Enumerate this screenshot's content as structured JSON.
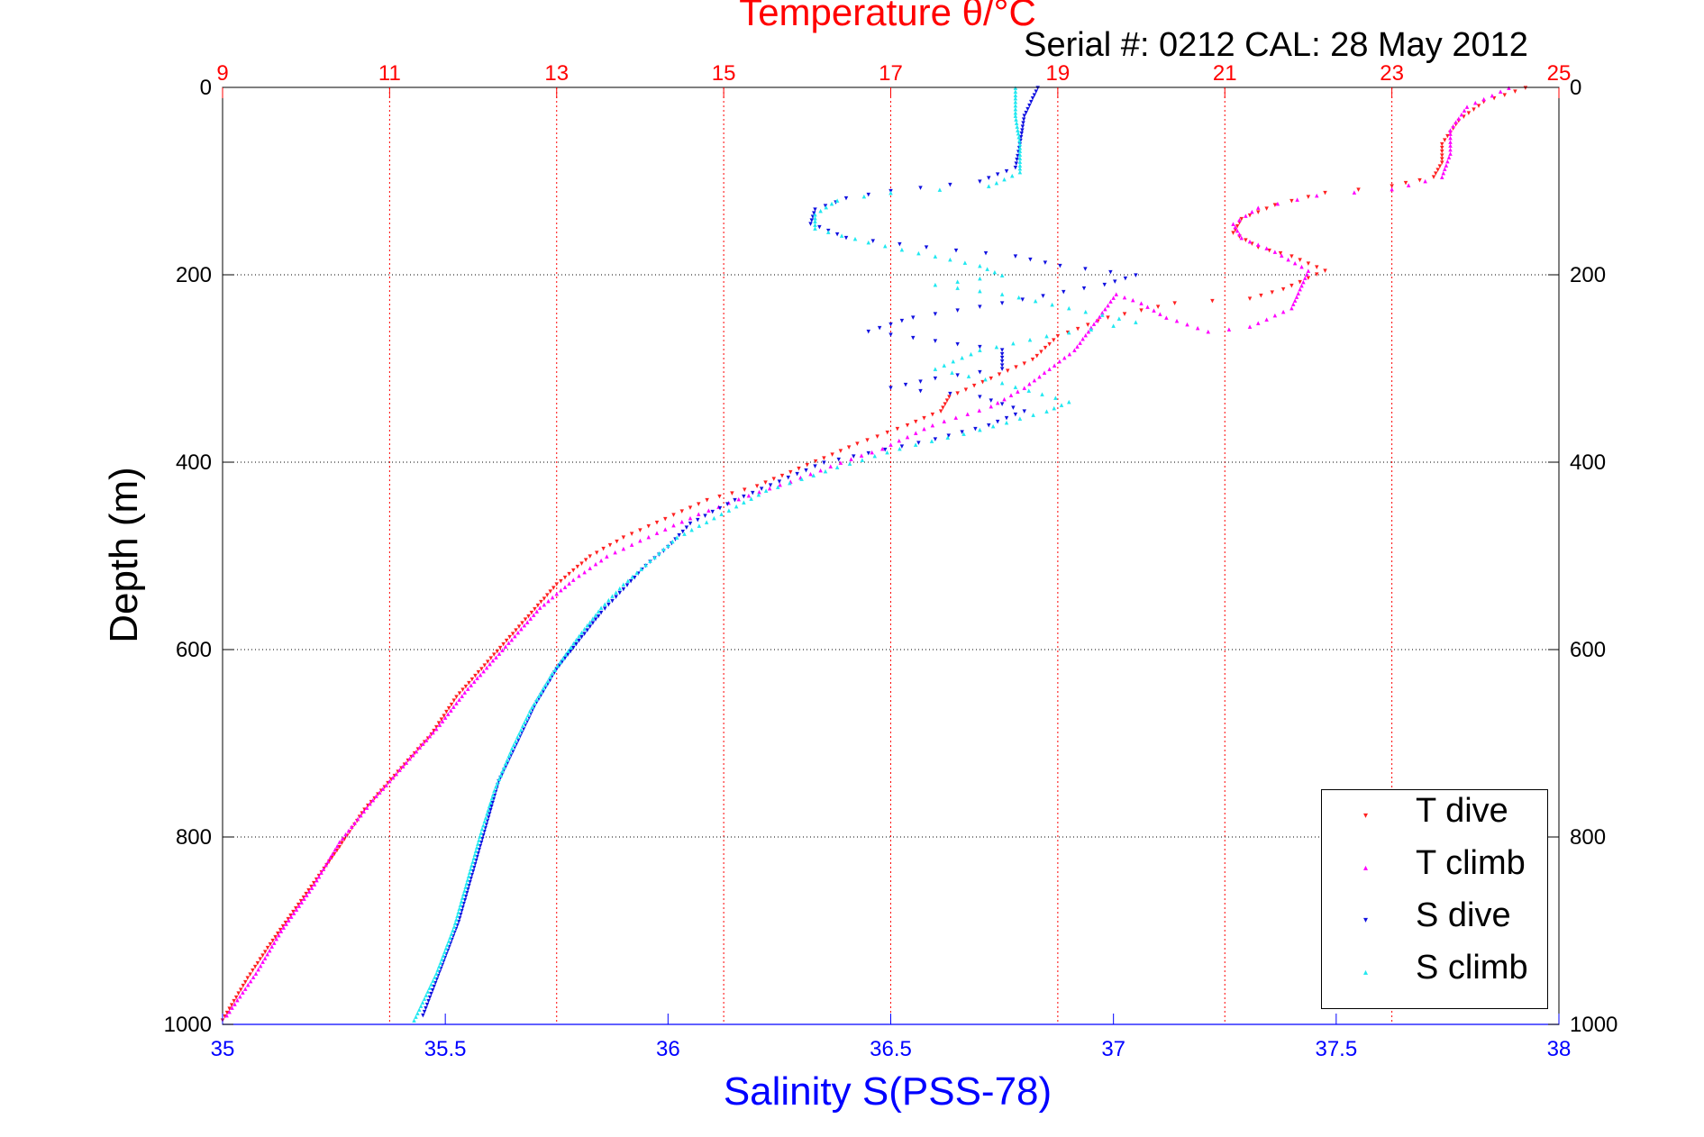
{
  "chart_data": {
    "type": "scatter",
    "title": "Temperature θ/°C",
    "subtitle": "Serial #: 0212  CAL: 28 May 2012",
    "ylabel": "Depth (m)",
    "xlabel": "Salinity S(PSS-78)",
    "top_axis": {
      "label": "Temperature θ/°C",
      "range": [
        9,
        25
      ],
      "ticks": [
        "9",
        "11",
        "13",
        "15",
        "17",
        "19",
        "21",
        "23",
        "25"
      ]
    },
    "bottom_axis": {
      "label": "Salinity S(PSS-78)",
      "range": [
        35,
        38
      ],
      "ticks": [
        "35",
        "35.5",
        "36",
        "36.5",
        "37",
        "37.5",
        "38"
      ]
    },
    "y_axis": {
      "range": [
        0,
        1000
      ],
      "reversed": true,
      "ticks": [
        "0",
        "200",
        "400",
        "600",
        "800",
        "1000"
      ]
    },
    "grid": true,
    "legend_position": "bottom-right",
    "colors": {
      "temperature": "#ff0000",
      "salinity": "#0000ff",
      "T dive": "#ff2020",
      "T climb": "#ff00ff",
      "S dive": "#1010e0",
      "S climb": "#20e8f0"
    },
    "series": [
      {
        "name": "T dive",
        "axis": "temperature",
        "marker": "▾",
        "points": [
          [
            24.6,
            0
          ],
          [
            24.1,
            15
          ],
          [
            23.8,
            35
          ],
          [
            23.6,
            60
          ],
          [
            23.6,
            80
          ],
          [
            23.5,
            95
          ],
          [
            23.0,
            105
          ],
          [
            22.2,
            112
          ],
          [
            21.6,
            125
          ],
          [
            21.2,
            140
          ],
          [
            21.1,
            155
          ],
          [
            21.4,
            170
          ],
          [
            21.8,
            180
          ],
          [
            22.2,
            195
          ],
          [
            21.7,
            215
          ],
          [
            21.3,
            225
          ],
          [
            20.4,
            230
          ],
          [
            19.6,
            245
          ],
          [
            19.0,
            265
          ],
          [
            18.7,
            290
          ],
          [
            18.2,
            310
          ],
          [
            17.7,
            330
          ],
          [
            17.6,
            345
          ],
          [
            17.2,
            360
          ],
          [
            16.6,
            380
          ],
          [
            16.2,
            395
          ],
          [
            15.8,
            410
          ],
          [
            15.4,
            425
          ],
          [
            14.8,
            440
          ],
          [
            14.3,
            460
          ],
          [
            13.8,
            480
          ],
          [
            13.4,
            500
          ],
          [
            13.0,
            530
          ],
          [
            12.7,
            560
          ],
          [
            12.4,
            590
          ],
          [
            12.1,
            620
          ],
          [
            11.8,
            650
          ],
          [
            11.5,
            690
          ],
          [
            11.1,
            730
          ],
          [
            10.7,
            770
          ],
          [
            10.4,
            810
          ],
          [
            10.0,
            860
          ],
          [
            9.6,
            910
          ],
          [
            9.3,
            950
          ],
          [
            9.0,
            995
          ]
        ]
      },
      {
        "name": "T climb",
        "axis": "temperature",
        "marker": "▴",
        "points": [
          [
            24.4,
            0
          ],
          [
            23.9,
            20
          ],
          [
            23.7,
            45
          ],
          [
            23.7,
            70
          ],
          [
            23.6,
            95
          ],
          [
            23.0,
            108
          ],
          [
            22.1,
            115
          ],
          [
            21.4,
            128
          ],
          [
            21.1,
            145
          ],
          [
            21.2,
            160
          ],
          [
            21.6,
            175
          ],
          [
            22.0,
            195
          ],
          [
            21.9,
            215
          ],
          [
            21.8,
            235
          ],
          [
            21.3,
            255
          ],
          [
            20.8,
            260
          ],
          [
            20.3,
            245
          ],
          [
            20.0,
            230
          ],
          [
            19.7,
            220
          ],
          [
            19.2,
            280
          ],
          [
            18.9,
            300
          ],
          [
            18.6,
            320
          ],
          [
            18.2,
            340
          ],
          [
            17.5,
            360
          ],
          [
            16.9,
            385
          ],
          [
            16.4,
            400
          ],
          [
            15.8,
            420
          ],
          [
            15.3,
            435
          ],
          [
            14.7,
            455
          ],
          [
            14.2,
            475
          ],
          [
            13.6,
            500
          ],
          [
            13.2,
            525
          ],
          [
            12.8,
            555
          ],
          [
            12.5,
            585
          ],
          [
            12.2,
            615
          ],
          [
            11.9,
            645
          ],
          [
            11.6,
            680
          ],
          [
            11.2,
            720
          ],
          [
            10.8,
            760
          ],
          [
            10.4,
            805
          ],
          [
            10.1,
            850
          ],
          [
            9.7,
            900
          ],
          [
            9.4,
            945
          ],
          [
            9.05,
            990
          ]
        ]
      },
      {
        "name": "S dive",
        "axis": "salinity",
        "marker": "▾",
        "points": [
          [
            36.83,
            0
          ],
          [
            36.8,
            30
          ],
          [
            36.79,
            60
          ],
          [
            36.78,
            85
          ],
          [
            36.7,
            100
          ],
          [
            36.5,
            110
          ],
          [
            36.4,
            118
          ],
          [
            36.33,
            130
          ],
          [
            36.32,
            145
          ],
          [
            36.4,
            160
          ],
          [
            36.58,
            170
          ],
          [
            36.78,
            180
          ],
          [
            36.88,
            190
          ],
          [
            37.05,
            200
          ],
          [
            36.98,
            210
          ],
          [
            36.75,
            230
          ],
          [
            36.55,
            245
          ],
          [
            36.45,
            260
          ],
          [
            36.6,
            270
          ],
          [
            36.75,
            280
          ],
          [
            36.75,
            300
          ],
          [
            36.6,
            310
          ],
          [
            36.5,
            320
          ],
          [
            36.7,
            330
          ],
          [
            36.8,
            345
          ],
          [
            36.72,
            360
          ],
          [
            36.6,
            375
          ],
          [
            36.45,
            390
          ],
          [
            36.35,
            400
          ],
          [
            36.25,
            420
          ],
          [
            36.15,
            440
          ],
          [
            36.05,
            465
          ],
          [
            36.0,
            490
          ],
          [
            35.95,
            510
          ],
          [
            35.9,
            535
          ],
          [
            35.85,
            560
          ],
          [
            35.8,
            590
          ],
          [
            35.75,
            620
          ],
          [
            35.7,
            660
          ],
          [
            35.66,
            700
          ],
          [
            35.62,
            740
          ],
          [
            35.59,
            790
          ],
          [
            35.56,
            840
          ],
          [
            35.53,
            890
          ],
          [
            35.49,
            940
          ],
          [
            35.45,
            990
          ]
        ]
      },
      {
        "name": "S climb",
        "axis": "salinity",
        "marker": "▴",
        "points": [
          [
            36.78,
            0
          ],
          [
            36.78,
            30
          ],
          [
            36.79,
            60
          ],
          [
            36.79,
            90
          ],
          [
            36.72,
            105
          ],
          [
            36.5,
            112
          ],
          [
            36.38,
            120
          ],
          [
            36.33,
            135
          ],
          [
            36.33,
            150
          ],
          [
            36.45,
            165
          ],
          [
            36.6,
            180
          ],
          [
            36.7,
            190
          ],
          [
            36.75,
            200
          ],
          [
            36.6,
            210
          ],
          [
            36.75,
            220
          ],
          [
            36.9,
            235
          ],
          [
            37.05,
            250
          ],
          [
            36.85,
            265
          ],
          [
            36.7,
            280
          ],
          [
            36.6,
            300
          ],
          [
            36.75,
            315
          ],
          [
            36.9,
            335
          ],
          [
            36.85,
            345
          ],
          [
            36.7,
            365
          ],
          [
            36.52,
            385
          ],
          [
            36.38,
            405
          ],
          [
            36.22,
            430
          ],
          [
            36.12,
            455
          ],
          [
            36.02,
            480
          ],
          [
            35.96,
            505
          ],
          [
            35.9,
            530
          ],
          [
            35.85,
            555
          ],
          [
            35.8,
            585
          ],
          [
            35.74,
            625
          ],
          [
            35.69,
            665
          ],
          [
            35.65,
            705
          ],
          [
            35.61,
            750
          ],
          [
            35.58,
            795
          ],
          [
            35.55,
            845
          ],
          [
            35.52,
            895
          ],
          [
            35.48,
            945
          ],
          [
            35.43,
            995
          ]
        ]
      }
    ]
  }
}
